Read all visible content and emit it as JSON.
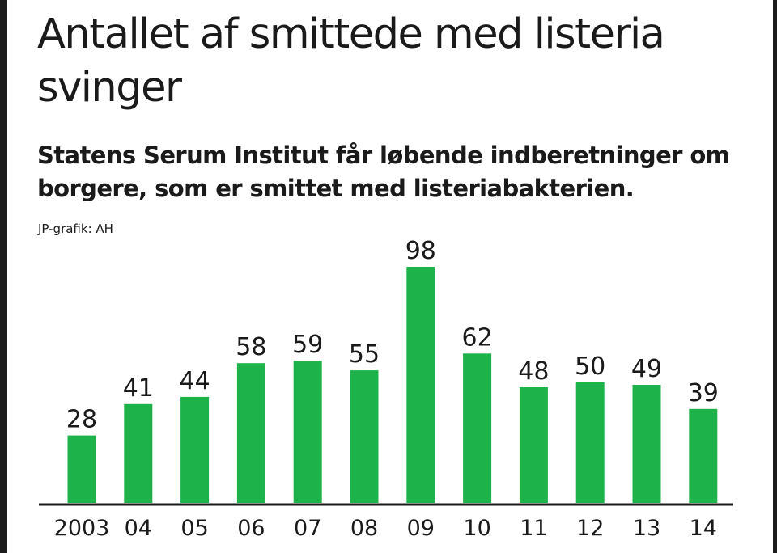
{
  "title": "Antallet af smittede med listeria svinger",
  "subtitle": "Statens Serum Institut får løbende indberetninger om borgere, som er smittet med listeriabakterien.",
  "credit": "JP-grafik: AH",
  "colors": {
    "bar": "#1db34a",
    "axis": "#1a1a1a",
    "text": "#1a1a1a"
  },
  "chart_data": {
    "type": "bar",
    "title": "Antallet af smittede med listeria svinger",
    "subtitle": "Statens Serum Institut får løbende indberetninger om borgere, som er smittet med listeriabakterien.",
    "xlabel": "",
    "ylabel": "",
    "categories": [
      "2003",
      "04",
      "05",
      "06",
      "07",
      "08",
      "09",
      "10",
      "11",
      "12",
      "13",
      "14"
    ],
    "values": [
      28,
      41,
      44,
      58,
      59,
      55,
      98,
      62,
      48,
      50,
      49,
      39
    ],
    "ylim": [
      0,
      98
    ],
    "grid": false,
    "legend": "none",
    "data_labels": true
  }
}
